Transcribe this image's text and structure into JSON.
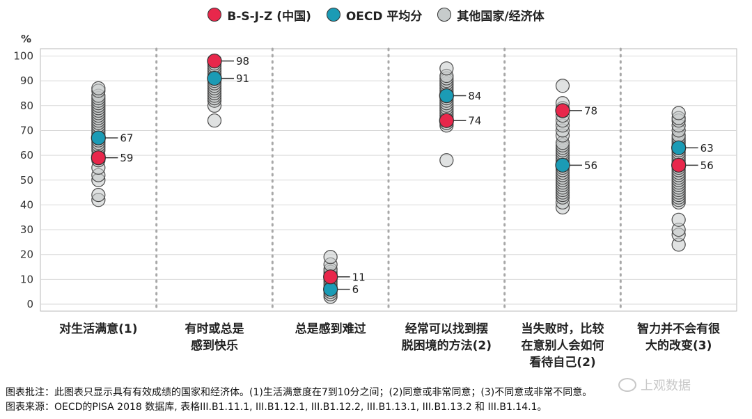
{
  "legend": [
    {
      "name": "B-S-J-Z (中国)",
      "color": "#e8274b"
    },
    {
      "name": "OECD 平均分",
      "color": "#1b9bb5"
    },
    {
      "name": "其他国家/经济体",
      "color": "#c6cbcb"
    }
  ],
  "chart_data": {
    "type": "scatter",
    "ylabel": "%",
    "ylim": [
      0,
      100
    ],
    "yticks": [
      0,
      10,
      20,
      30,
      40,
      50,
      60,
      70,
      80,
      90,
      100
    ],
    "grid": true,
    "categories": [
      [
        "对生活满意(1)"
      ],
      [
        "有时或总是",
        "感到快乐"
      ],
      [
        "总是感到难过"
      ],
      [
        "经常可以找到摆",
        "脱困境的方法(2)"
      ],
      [
        "当失败时，比较",
        "在意别人会如何",
        "看待自己(2)"
      ],
      [
        "智力并不会有很",
        "大的改变(3)"
      ]
    ],
    "series": [
      {
        "name": "B-S-J-Z (中国)",
        "color": "#e8274b",
        "values": [
          59,
          98,
          11,
          74,
          78,
          56
        ]
      },
      {
        "name": "OECD 平均分",
        "color": "#1b9bb5",
        "values": [
          67,
          91,
          6,
          84,
          56,
          63
        ]
      },
      {
        "name": "其他国家/经济体",
        "color": "#c6cbcb",
        "points": [
          [
            42,
            44,
            50,
            52,
            55,
            58,
            60,
            62,
            63,
            64,
            65,
            66,
            68,
            69,
            70,
            71,
            72,
            73,
            74,
            75,
            76,
            77,
            78,
            79,
            80,
            81,
            82,
            83,
            84,
            86,
            87
          ],
          [
            74,
            80,
            82,
            83,
            84,
            85,
            86,
            87,
            88,
            89,
            90,
            92,
            93,
            94,
            95,
            96,
            97
          ],
          [
            3,
            4,
            5,
            7,
            8,
            9,
            10,
            12,
            13,
            14,
            16,
            19
          ],
          [
            58,
            72,
            73,
            75,
            76,
            77,
            78,
            79,
            80,
            81,
            82,
            83,
            85,
            86,
            87,
            88,
            89,
            90,
            91,
            92,
            95
          ],
          [
            39,
            41,
            43,
            44,
            45,
            46,
            47,
            48,
            49,
            50,
            51,
            52,
            53,
            54,
            55,
            57,
            58,
            59,
            60,
            61,
            62,
            63,
            64,
            65,
            68,
            70,
            72,
            74,
            76,
            79,
            81,
            88
          ],
          [
            24,
            28,
            30,
            34,
            41,
            42,
            43,
            44,
            45,
            46,
            47,
            48,
            49,
            50,
            51,
            52,
            53,
            54,
            55,
            57,
            58,
            59,
            60,
            61,
            62,
            64,
            65,
            66,
            67,
            68,
            70,
            72,
            74,
            75,
            77
          ]
        ]
      }
    ]
  },
  "notes": {
    "note1": "图表批注：此图表只显示具有有效成绩的国家和经济体。(1)生活满意度在7到10分之间；(2)同意或非常同意；(3)不同意或非常不同意。",
    "note2": "图表来源：OECD的PISA 2018 数据库, 表格III.B1.11.1, III.B1.12.1, III.B1.12.2, III.B1.13.1, III.B1.13.2 和 III.B1.14.1。"
  },
  "watermark": "上观数据"
}
